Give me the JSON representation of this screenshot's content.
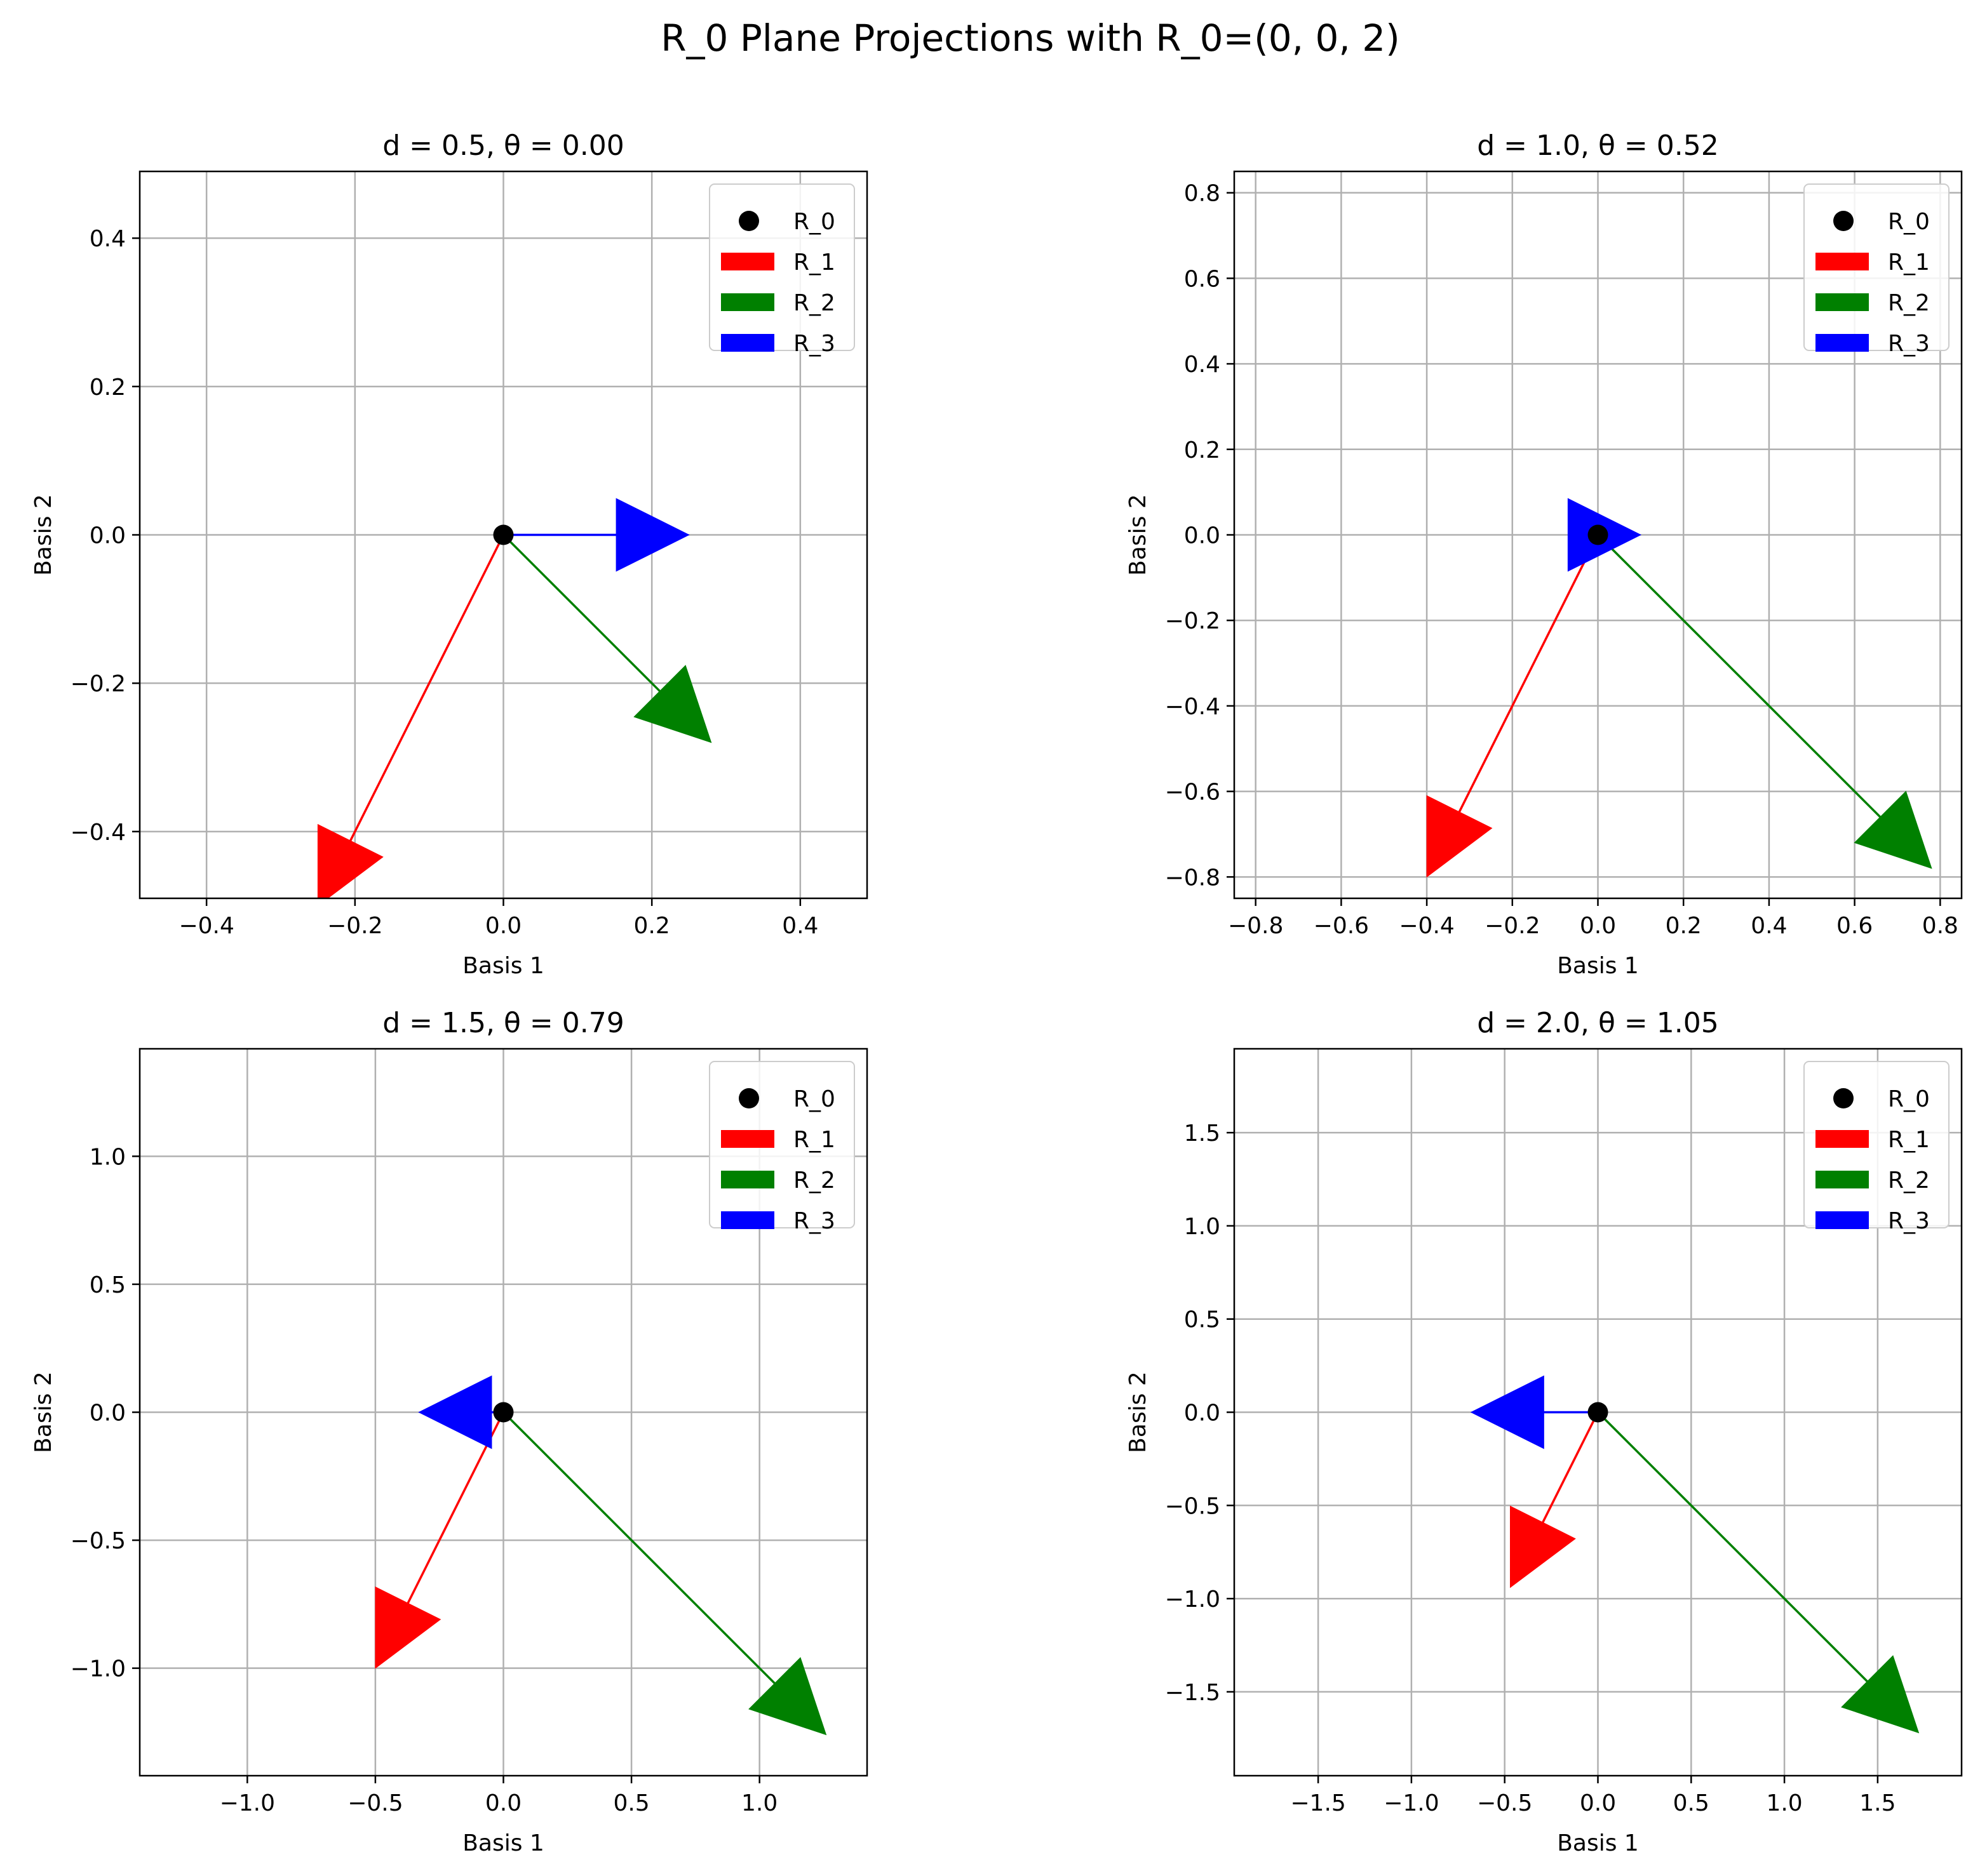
{
  "figure": {
    "suptitle": "R_0 Plane Projections with R_0=(0, 0, 2)"
  },
  "colors": {
    "R_0": "#000000",
    "R_1": "#ff0000",
    "R_2": "#008000",
    "R_3": "#0000ff",
    "grid": "#b0b0b0"
  },
  "chart_data": [
    {
      "type": "vector",
      "title": "d = 0.5, θ = 0.00",
      "xlabel": "Basis 1",
      "ylabel": "Basis 2",
      "xlim": [
        -0.49,
        0.49
      ],
      "ylim": [
        -0.49,
        0.49
      ],
      "xticks": [
        -0.4,
        -0.2,
        0.0,
        0.2,
        0.4
      ],
      "yticks": [
        -0.4,
        -0.2,
        0.0,
        0.2,
        0.4
      ],
      "xtick_labels": [
        "−0.4",
        "−0.2",
        "0.0",
        "0.2",
        "0.4"
      ],
      "ytick_labels": [
        "−0.4",
        "−0.2",
        "0.0",
        "0.2",
        "0.4"
      ],
      "grid": true,
      "legend_placement": "upper right",
      "legend": [
        "R_0",
        "R_1",
        "R_2",
        "R_3"
      ],
      "origin": {
        "name": "R_0",
        "x": 0,
        "y": 0
      },
      "vectors": [
        {
          "name": "R_1",
          "dx": -0.25,
          "dy": -0.5
        },
        {
          "name": "R_2",
          "dx": 0.28,
          "dy": -0.28
        },
        {
          "name": "R_3",
          "dx": 0.25,
          "dy": 0.0
        }
      ]
    },
    {
      "type": "vector",
      "title": "d = 1.0, θ = 0.52",
      "xlabel": "Basis 1",
      "ylabel": "Basis 2",
      "xlim": [
        -0.85,
        0.85
      ],
      "ylim": [
        -0.85,
        0.85
      ],
      "xticks": [
        -0.8,
        -0.6,
        -0.4,
        -0.2,
        0.0,
        0.2,
        0.4,
        0.6,
        0.8
      ],
      "yticks": [
        -0.8,
        -0.6,
        -0.4,
        -0.2,
        0.0,
        0.2,
        0.4,
        0.6,
        0.8
      ],
      "xtick_labels": [
        "−0.8",
        "−0.6",
        "−0.4",
        "−0.2",
        "0.0",
        "0.2",
        "0.4",
        "0.6",
        "0.8"
      ],
      "ytick_labels": [
        "−0.8",
        "−0.6",
        "−0.4",
        "−0.2",
        "0.0",
        "0.2",
        "0.4",
        "0.6",
        "0.8"
      ],
      "grid": true,
      "legend_placement": "upper right",
      "legend": [
        "R_0",
        "R_1",
        "R_2",
        "R_3"
      ],
      "origin": {
        "name": "R_0",
        "x": 0,
        "y": 0
      },
      "vectors": [
        {
          "name": "R_1",
          "dx": -0.4,
          "dy": -0.8
        },
        {
          "name": "R_2",
          "dx": 0.78,
          "dy": -0.78
        },
        {
          "name": "R_3",
          "dx": 0.1,
          "dy": 0.0
        }
      ]
    },
    {
      "type": "vector",
      "title": "d = 1.5, θ = 0.79",
      "xlabel": "Basis 1",
      "ylabel": "Basis 2",
      "xlim": [
        -1.42,
        1.42
      ],
      "ylim": [
        -1.42,
        1.42
      ],
      "xticks": [
        -1.0,
        -0.5,
        0.0,
        0.5,
        1.0
      ],
      "yticks": [
        -1.0,
        -0.5,
        0.0,
        0.5,
        1.0
      ],
      "xtick_labels": [
        "−1.0",
        "−0.5",
        "0.0",
        "0.5",
        "1.0"
      ],
      "ytick_labels": [
        "−1.0",
        "−0.5",
        "0.0",
        "0.5",
        "1.0"
      ],
      "grid": true,
      "legend_placement": "upper right",
      "legend": [
        "R_0",
        "R_1",
        "R_2",
        "R_3"
      ],
      "origin": {
        "name": "R_0",
        "x": 0,
        "y": 0
      },
      "vectors": [
        {
          "name": "R_1",
          "dx": -0.5,
          "dy": -1.0
        },
        {
          "name": "R_2",
          "dx": 1.26,
          "dy": -1.26
        },
        {
          "name": "R_3",
          "dx": -0.33,
          "dy": 0.0
        }
      ]
    },
    {
      "type": "vector",
      "title": "d = 2.0, θ = 1.05",
      "xlabel": "Basis 1",
      "ylabel": "Basis 2",
      "xlim": [
        -1.95,
        1.95
      ],
      "ylim": [
        -1.95,
        1.95
      ],
      "xticks": [
        -1.5,
        -1.0,
        -0.5,
        0.0,
        0.5,
        1.0,
        1.5
      ],
      "yticks": [
        -1.5,
        -1.0,
        -0.5,
        0.0,
        0.5,
        1.0,
        1.5
      ],
      "xtick_labels": [
        "−1.5",
        "−1.0",
        "−0.5",
        "0.0",
        "0.5",
        "1.0",
        "1.5"
      ],
      "ytick_labels": [
        "−1.5",
        "−1.0",
        "−0.5",
        "0.0",
        "0.5",
        "1.0",
        "1.5"
      ],
      "grid": true,
      "legend_placement": "upper right",
      "legend": [
        "R_0",
        "R_1",
        "R_2",
        "R_3"
      ],
      "origin": {
        "name": "R_0",
        "x": 0,
        "y": 0
      },
      "vectors": [
        {
          "name": "R_1",
          "dx": -0.47,
          "dy": -0.94
        },
        {
          "name": "R_2",
          "dx": 1.72,
          "dy": -1.72
        },
        {
          "name": "R_3",
          "dx": -0.68,
          "dy": 0.0
        }
      ]
    }
  ]
}
